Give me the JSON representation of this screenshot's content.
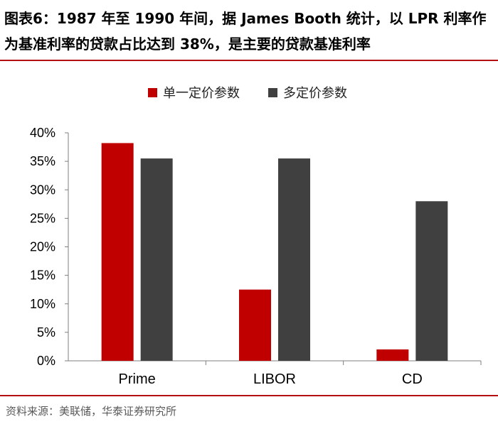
{
  "title": "图表6：1987 年至 1990 年间，据 James Booth 统计，以 LPR 利率作为基准利率的贷款占比达到 38%，是主要的贷款基准利率",
  "source": "资料来源：美联储，华泰证券研究所",
  "colors": {
    "accent": "#b30f12",
    "series1": "#c00000",
    "series2": "#404040"
  },
  "chart_data": {
    "type": "bar",
    "categories": [
      "Prime",
      "LIBOR",
      "CD"
    ],
    "series": [
      {
        "name": "单一定价参数",
        "values": [
          38.2,
          12.5,
          2.0
        ]
      },
      {
        "name": "多定价参数",
        "values": [
          35.5,
          35.5,
          28.0
        ]
      }
    ],
    "ylim": [
      0,
      40
    ],
    "yticks": [
      "0%",
      "5%",
      "10%",
      "15%",
      "20%",
      "25%",
      "30%",
      "35%",
      "40%"
    ],
    "ytick_values": [
      0,
      5,
      10,
      15,
      20,
      25,
      30,
      35,
      40
    ],
    "xlabel": "",
    "ylabel": "",
    "legend": "top-center"
  }
}
